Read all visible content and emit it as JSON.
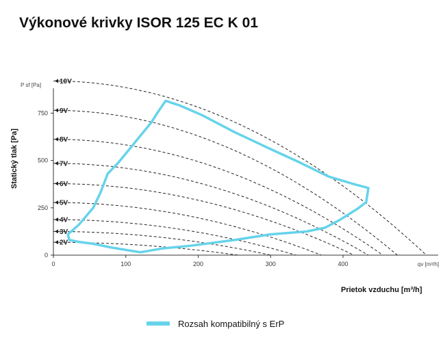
{
  "chart_data": {
    "type": "line",
    "title": "Výkonové krivky ISOR 125 EC K 01",
    "ylabel": "Statický tlak [Pa]",
    "xlabel": "Prietok vzduchu [m³/h]",
    "y_axis_unit": "P sf [Pa]",
    "x_axis_unit": "qv [m³/h]",
    "xlim": [
      0,
      520
    ],
    "ylim": [
      0,
      925
    ],
    "x_ticks": [
      "0",
      "100",
      "200",
      "300",
      "400"
    ],
    "y_ticks": [
      "0",
      "250",
      "500",
      "750"
    ],
    "grid": false,
    "voltage_curves": [
      {
        "name": "10V",
        "p0": 920,
        "qmax": 515
      },
      {
        "name": "9V",
        "p0": 765,
        "qmax": 475
      },
      {
        "name": "8V",
        "p0": 612,
        "qmax": 455
      },
      {
        "name": "7V",
        "p0": 485,
        "qmax": 435
      },
      {
        "name": "6V",
        "p0": 378,
        "qmax": 415
      },
      {
        "name": "5V",
        "p0": 278,
        "qmax": 370
      },
      {
        "name": "4V",
        "p0": 188,
        "qmax": 335
      },
      {
        "name": "3V",
        "p0": 125,
        "qmax": 300
      },
      {
        "name": "2V",
        "p0": 68,
        "qmax": 255
      }
    ],
    "erp_region": {
      "name": "Rozsah kompatibilný s ErP",
      "color": "#66d3ea",
      "points": [
        [
          155,
          815
        ],
        [
          175,
          790
        ],
        [
          205,
          740
        ],
        [
          250,
          650
        ],
        [
          300,
          560
        ],
        [
          340,
          490
        ],
        [
          380,
          415
        ],
        [
          415,
          375
        ],
        [
          435,
          355
        ],
        [
          432,
          280
        ],
        [
          420,
          245
        ],
        [
          395,
          185
        ],
        [
          375,
          145
        ],
        [
          350,
          125
        ],
        [
          300,
          110
        ],
        [
          250,
          80
        ],
        [
          190,
          50
        ],
        [
          150,
          35
        ],
        [
          120,
          15
        ],
        [
          80,
          40
        ],
        [
          55,
          60
        ],
        [
          35,
          70
        ],
        [
          22,
          80
        ],
        [
          20,
          110
        ],
        [
          35,
          160
        ],
        [
          55,
          250
        ],
        [
          65,
          330
        ],
        [
          75,
          430
        ],
        [
          90,
          490
        ],
        [
          105,
          560
        ],
        [
          120,
          630
        ],
        [
          135,
          700
        ],
        [
          145,
          760
        ],
        [
          155,
          815
        ]
      ]
    }
  }
}
